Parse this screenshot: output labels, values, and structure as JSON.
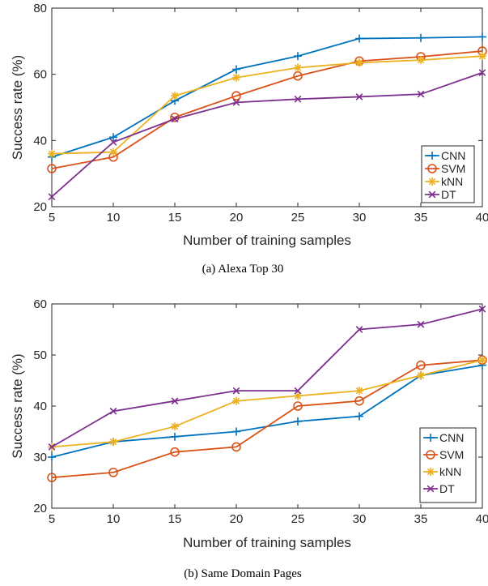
{
  "chart_data": [
    {
      "type": "line",
      "caption": "(a)  Alexa Top 30",
      "xlabel": "Number of training samples",
      "ylabel": "Success rate (%)",
      "x": [
        5,
        10,
        15,
        20,
        25,
        30,
        35,
        40
      ],
      "xlim": [
        5,
        40
      ],
      "ylim": [
        20,
        80
      ],
      "xticks": [
        "5",
        "10",
        "15",
        "20",
        "25",
        "30",
        "35",
        "40"
      ],
      "yticks": [
        "20",
        "40",
        "60",
        "80"
      ],
      "grid": false,
      "legend_position": "right",
      "series": [
        {
          "name": "CNN",
          "marker": "plus",
          "color": "#0072BD",
          "values": [
            35,
            41,
            52,
            61.5,
            65.5,
            70.8,
            71,
            71.3
          ]
        },
        {
          "name": "SVM",
          "marker": "circle",
          "color": "#D95319",
          "values": [
            31.5,
            35,
            47,
            53.5,
            59.5,
            64,
            65.3,
            67
          ]
        },
        {
          "name": "kNN",
          "marker": "star",
          "color": "#EDB120",
          "values": [
            36,
            36.5,
            53.5,
            59,
            62,
            63.5,
            64.3,
            65.5
          ]
        },
        {
          "name": "DT",
          "marker": "cross",
          "color": "#7E2F8E",
          "values": [
            23,
            39.5,
            46.5,
            51.5,
            52.5,
            53.2,
            54,
            60.5
          ]
        }
      ]
    },
    {
      "type": "line",
      "caption": "(b)  Same Domain Pages",
      "xlabel": "Number of training samples",
      "ylabel": "Success rate (%)",
      "x": [
        5,
        10,
        15,
        20,
        25,
        30,
        35,
        40
      ],
      "xlim": [
        5,
        40
      ],
      "ylim": [
        20,
        60
      ],
      "xticks": [
        "5",
        "10",
        "15",
        "20",
        "25",
        "30",
        "35",
        "40"
      ],
      "yticks": [
        "20",
        "30",
        "40",
        "50",
        "60"
      ],
      "grid": false,
      "legend_position": "bottom-right",
      "series": [
        {
          "name": "CNN",
          "marker": "plus",
          "color": "#0072BD",
          "values": [
            30,
            33,
            34,
            35,
            37,
            38,
            46,
            48
          ]
        },
        {
          "name": "SVM",
          "marker": "circle",
          "color": "#D95319",
          "values": [
            26,
            27,
            31,
            32,
            40,
            41,
            48,
            49
          ]
        },
        {
          "name": "kNN",
          "marker": "star",
          "color": "#EDB120",
          "values": [
            32,
            33,
            36,
            41,
            42,
            43,
            46,
            49
          ]
        },
        {
          "name": "DT",
          "marker": "cross",
          "color": "#7E2F8E",
          "values": [
            32,
            39,
            41,
            43,
            43,
            55,
            56,
            59
          ]
        }
      ]
    }
  ]
}
